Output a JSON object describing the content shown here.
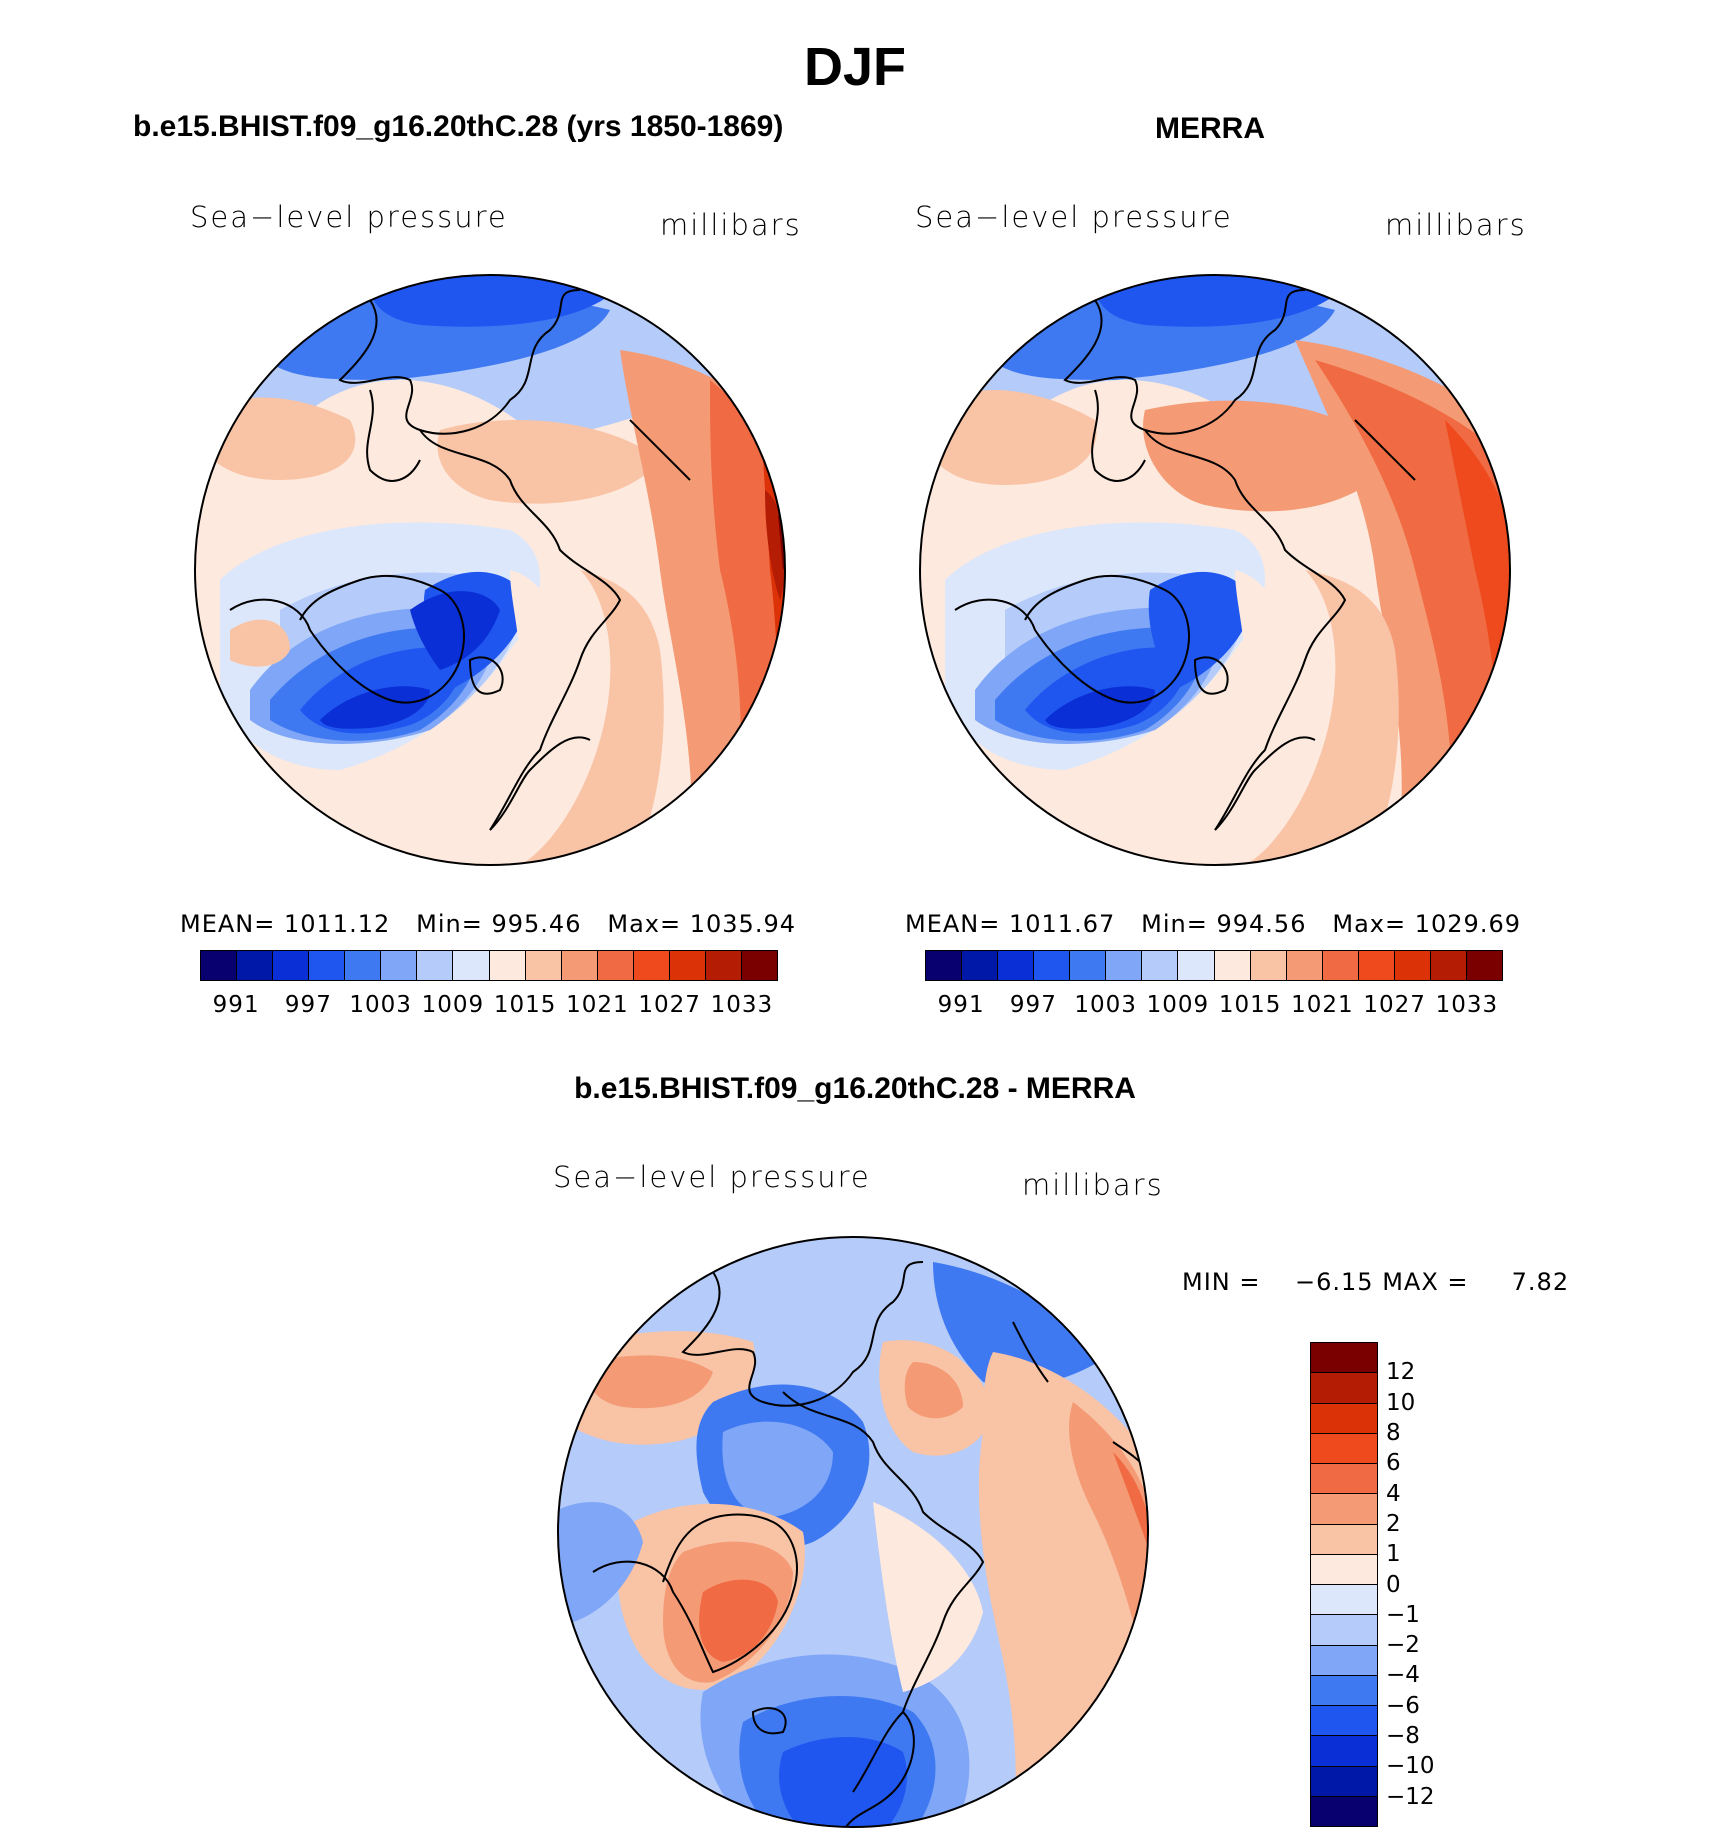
{
  "figure": {
    "title": "DJF",
    "panels": {
      "model": {
        "title": "b.e15.BHIST.f09_g16.20thC.28 (yrs 1850-1869)",
        "left_label": "Sea−level pressure",
        "right_label": "millibars",
        "stats": {
          "mean_label": "MEAN=",
          "mean": "1011.12",
          "min_label": "Min=",
          "min": "995.46",
          "max_label": "Max=",
          "max": "1035.94"
        }
      },
      "obs": {
        "title": "MERRA",
        "left_label": "Sea−level pressure",
        "right_label": "millibars",
        "stats": {
          "mean_label": "MEAN=",
          "mean": "1011.67",
          "min_label": "Min=",
          "min": "994.56",
          "max_label": "Max=",
          "max": "1029.69"
        }
      },
      "diff": {
        "title": "b.e15.BHIST.f09_g16.20thC.28 - MERRA",
        "left_label": "Sea−level pressure",
        "right_label": "millibars",
        "stats_min_label": "MIN =",
        "stats_min": "−6.15",
        "stats_max_label": "MAX =",
        "stats_max": "7.82"
      }
    },
    "colorbars": {
      "abs_colors": [
        "#08006e",
        "#0018a8",
        "#0a2fd6",
        "#1f56f0",
        "#3f79f2",
        "#7fa6f7",
        "#b5cbf9",
        "#dce7fb",
        "#fde9dd",
        "#f9c3a6",
        "#f49b76",
        "#f06b43",
        "#ee4a1e",
        "#dc3208",
        "#b51c04",
        "#7a0000"
      ],
      "abs_labels": [
        "991",
        "997",
        "1003",
        "1009",
        "1015",
        "1021",
        "1027",
        "1033"
      ],
      "diff_colors": [
        "#08006e",
        "#0018a8",
        "#0a2fd6",
        "#1f56f0",
        "#3f79f2",
        "#7fa6f7",
        "#b5cbf9",
        "#dce7fb",
        "#fde9dd",
        "#f9c3a6",
        "#f49b76",
        "#f06b43",
        "#ee4a1e",
        "#dc3208",
        "#b51c04",
        "#7a0000"
      ],
      "diff_labels": [
        "−12",
        "−10",
        "−8",
        "−6",
        "−4",
        "−2",
        "−1",
        "0",
        "1",
        "2",
        "4",
        "6",
        "8",
        "10",
        "12"
      ]
    }
  }
}
